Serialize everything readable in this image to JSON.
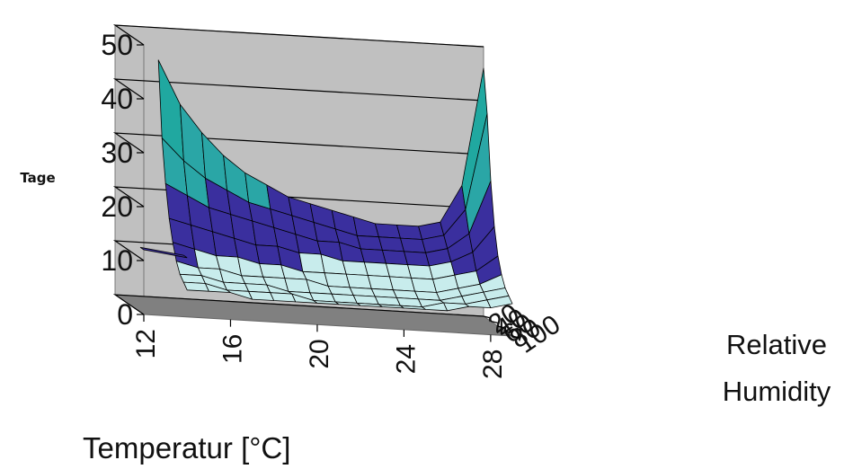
{
  "chart_data": {
    "type": "surface3d",
    "ylabel": "Tage",
    "xlabel": "Temperatur [°C]",
    "zlabel": [
      "Relative",
      "Humidity"
    ],
    "zlim": [
      0,
      50
    ],
    "z_ticks": [
      0,
      10,
      20,
      30,
      40,
      50
    ],
    "x_ticks": [
      12,
      16,
      20,
      24,
      28
    ],
    "y_ticks": [
      20,
      40,
      60,
      80,
      100
    ],
    "x": [
      12,
      13,
      14,
      15,
      16,
      17,
      18,
      19,
      20,
      21,
      22,
      23,
      24,
      25,
      26,
      27,
      28,
      29
    ],
    "humidity": [
      20,
      30,
      40,
      50,
      60,
      70,
      80,
      90,
      100
    ],
    "surface_values": [
      [
        null,
        null,
        44,
        36,
        31,
        27,
        24,
        22,
        20,
        19,
        18,
        17,
        16,
        16,
        16,
        17,
        24,
        46
      ],
      [
        null,
        null,
        30,
        26,
        23,
        21,
        19,
        18,
        17,
        16,
        15,
        14,
        14,
        14,
        14,
        15,
        20,
        38
      ],
      [
        null,
        null,
        22,
        20,
        18,
        17,
        16,
        15,
        14,
        13,
        13,
        12,
        12,
        12,
        12,
        13,
        16,
        26
      ],
      [
        null,
        null,
        16,
        15,
        14,
        13,
        12,
        12,
        11,
        11,
        10,
        10,
        10,
        10,
        10,
        11,
        13,
        18
      ],
      [
        null,
        null,
        12,
        11,
        10,
        10,
        9,
        9,
        8,
        8,
        8,
        8,
        8,
        8,
        8,
        9,
        10,
        13
      ],
      [
        null,
        null,
        9,
        8,
        8,
        7,
        7,
        7,
        7,
        6,
        6,
        6,
        6,
        6,
        6,
        7,
        8,
        10
      ],
      [
        null,
        null,
        7,
        7,
        6,
        6,
        6,
        5,
        5,
        5,
        5,
        5,
        5,
        5,
        5,
        6,
        7,
        8
      ],
      [
        null,
        null,
        6,
        6,
        5,
        5,
        5,
        5,
        4,
        4,
        4,
        4,
        4,
        4,
        5,
        5,
        6,
        7
      ],
      [
        12,
        11,
        5,
        5,
        5,
        4,
        4,
        4,
        4,
        4,
        4,
        4,
        4,
        4,
        4,
        5,
        5,
        6
      ]
    ],
    "color_bands": [
      {
        "range": [
          0,
          10
        ],
        "color": "#c8ecec"
      },
      {
        "range": [
          10,
          20
        ],
        "color": "#3a2f9e"
      },
      {
        "range": [
          20,
          30
        ],
        "color": "#2aa6a6"
      },
      {
        "range": [
          30,
          40
        ],
        "color": "#20a8a0"
      },
      {
        "range": [
          40,
          50
        ],
        "color": "#b4dc30"
      }
    ],
    "colors": {
      "wall": "#c0c0c0",
      "floor": "#808080",
      "grid": "#000000"
    }
  }
}
